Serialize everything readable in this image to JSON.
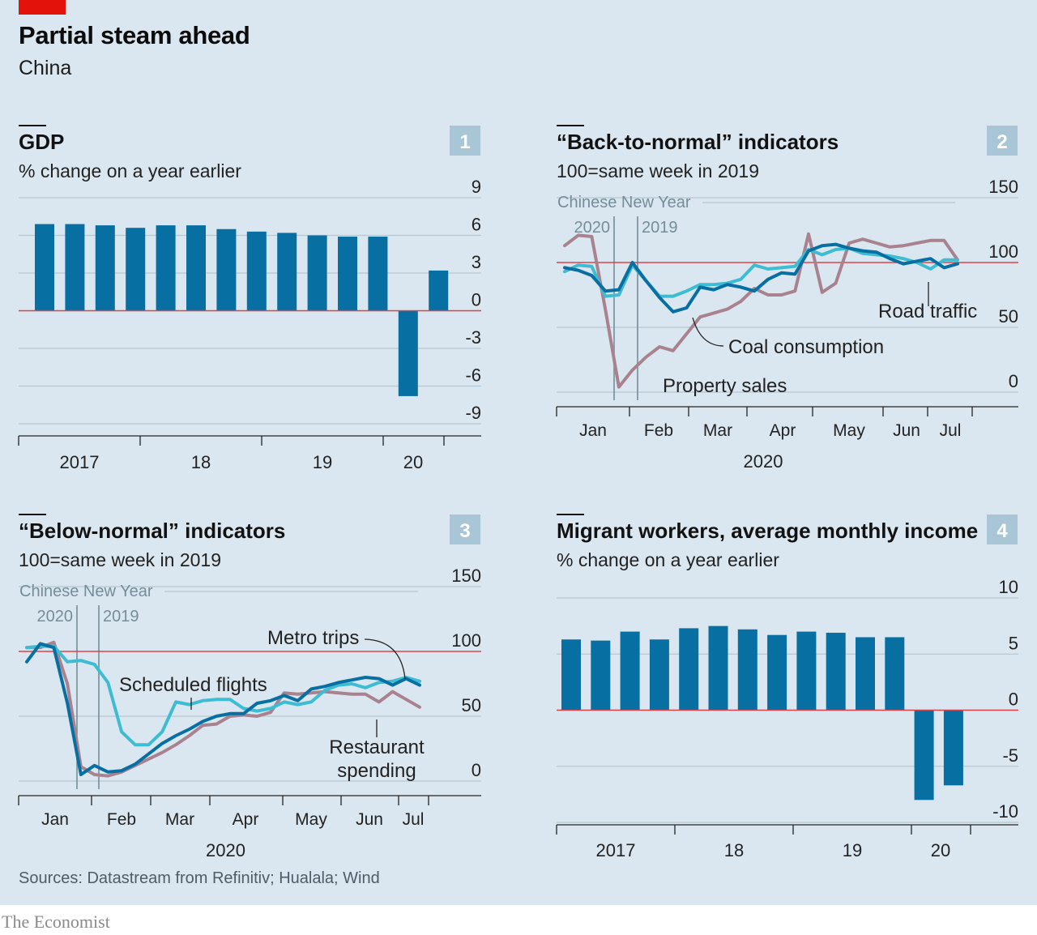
{
  "header": {
    "title": "Partial steam ahead",
    "subtitle": "China"
  },
  "source": "Sources: Datastream from Refinitiv; Hualala; Wind",
  "brand": "The Economist",
  "colors": {
    "background": "#dbe7f0",
    "bar": "#076fa2",
    "road_traffic": "#076fa2",
    "coal_consumption": "#3ebcd2",
    "property_sales": "#a8838f",
    "metro_trips": "#076fa2",
    "scheduled_flights": "#3ebcd2",
    "restaurant_spending": "#a8838f",
    "baseline": "#db444b",
    "grid": "#b7c6cf",
    "cny": "#758d99",
    "badge": "#a9c6d6",
    "brand_red": "#e3120b"
  },
  "chart_data": [
    {
      "number": "1",
      "type": "bar",
      "title": "GDP",
      "subtitle": "% change on a year earlier",
      "ylim": [
        -9,
        9
      ],
      "yticks": [
        "9",
        "6",
        "3",
        "0",
        "-3",
        "-6",
        "-9"
      ],
      "xticks": [
        "2017",
        "18",
        "19",
        "20"
      ],
      "categories": [
        "2017 Q1",
        "2017 Q2",
        "2017 Q3",
        "2017 Q4",
        "2018 Q1",
        "2018 Q2",
        "2018 Q3",
        "2018 Q4",
        "2019 Q1",
        "2019 Q2",
        "2019 Q3",
        "2019 Q4",
        "2020 Q1",
        "2020 Q2"
      ],
      "values": [
        6.9,
        6.9,
        6.8,
        6.6,
        6.8,
        6.8,
        6.5,
        6.3,
        6.2,
        6.0,
        5.9,
        5.9,
        -6.8,
        3.2
      ],
      "grid": true
    },
    {
      "number": "2",
      "type": "line",
      "title": "“Back-to-normal” indicators",
      "subtitle": "100=same week in 2019",
      "ylim": [
        0,
        150
      ],
      "yticks": [
        "150",
        "100",
        "50",
        "0"
      ],
      "xticks": [
        "Jan",
        "Feb",
        "Mar",
        "Apr",
        "May",
        "Jun",
        "Jul"
      ],
      "xlabel": "2020",
      "cny": {
        "label": "Chinese New Year",
        "line2020": "2020",
        "line2019": "2019"
      },
      "series": [
        {
          "name": "Coal consumption",
          "values": [
            93,
            98,
            97,
            74,
            75,
            98,
            86,
            74,
            74,
            78,
            83,
            83,
            84,
            87,
            98,
            95,
            96,
            97,
            110,
            106,
            110,
            111,
            107,
            106,
            105,
            103,
            100,
            95,
            102,
            102
          ]
        },
        {
          "name": "Road traffic",
          "values": [
            96,
            94,
            90,
            78,
            79,
            100,
            86,
            73,
            62,
            65,
            81,
            79,
            83,
            81,
            78,
            87,
            92,
            91,
            109,
            113,
            114,
            111,
            109,
            108,
            103,
            99,
            101,
            103,
            96,
            99
          ]
        },
        {
          "name": "Property sales",
          "values": [
            113,
            121,
            120,
            64,
            4,
            17,
            27,
            35,
            32,
            45,
            58,
            61,
            64,
            70,
            80,
            75,
            75,
            78,
            122,
            77,
            84,
            115,
            118,
            115,
            112,
            113,
            115,
            117,
            117,
            102
          ]
        }
      ],
      "annotations": [
        "Road traffic",
        "Coal consumption",
        "Property sales"
      ]
    },
    {
      "number": "3",
      "type": "line",
      "title": "“Below-normal” indicators",
      "subtitle": "100=same week in 2019",
      "ylim": [
        0,
        150
      ],
      "yticks": [
        "150",
        "100",
        "50",
        "0"
      ],
      "xticks": [
        "Jan",
        "Feb",
        "Mar",
        "Apr",
        "May",
        "Jun",
        "Jul"
      ],
      "xlabel": "2020",
      "cny": {
        "label": "Chinese New Year",
        "line2020": "2020",
        "line2019": "2019"
      },
      "series": [
        {
          "name": "Metro trips",
          "values": [
            92,
            106,
            103,
            60,
            5,
            12,
            7,
            8,
            13,
            21,
            29,
            35,
            40,
            46,
            50,
            52,
            52,
            60,
            62,
            66,
            62,
            71,
            73,
            76,
            78,
            80,
            79,
            74,
            79,
            74
          ]
        },
        {
          "name": "Scheduled flights",
          "values": [
            103,
            104,
            104,
            92,
            93,
            90,
            76,
            38,
            28,
            28,
            38,
            61,
            59,
            62,
            63,
            63,
            56,
            54,
            56,
            61,
            59,
            61,
            70,
            74,
            75,
            72,
            76,
            77,
            80,
            77
          ]
        },
        {
          "name": "Restaurant spending",
          "values": [
            103,
            103,
            107,
            75,
            11,
            5,
            4,
            7,
            12,
            17,
            22,
            28,
            35,
            43,
            44,
            50,
            51,
            50,
            53,
            68,
            67,
            68,
            69,
            68,
            67,
            67,
            61,
            69,
            63,
            57
          ]
        }
      ],
      "annotations": [
        "Metro trips",
        "Scheduled flights",
        "Restaurant spending"
      ]
    },
    {
      "number": "4",
      "type": "bar",
      "title": "Migrant workers, average monthly income",
      "subtitle": "% change on a year earlier",
      "ylim": [
        -10,
        10
      ],
      "yticks": [
        "10",
        "5",
        "0",
        "-5",
        "-10"
      ],
      "xticks": [
        "2017",
        "18",
        "19",
        "20"
      ],
      "categories": [
        "2017 Q1",
        "2017 Q2",
        "2017 Q3",
        "2017 Q4",
        "2018 Q1",
        "2018 Q2",
        "2018 Q3",
        "2018 Q4",
        "2019 Q1",
        "2019 Q2",
        "2019 Q3",
        "2019 Q4",
        "2020 Q1",
        "2020 Q2"
      ],
      "values": [
        6.3,
        6.2,
        7.0,
        6.3,
        7.3,
        7.5,
        7.2,
        6.7,
        7.0,
        6.9,
        6.5,
        6.5,
        -8.0,
        -6.7
      ],
      "grid": true
    }
  ]
}
